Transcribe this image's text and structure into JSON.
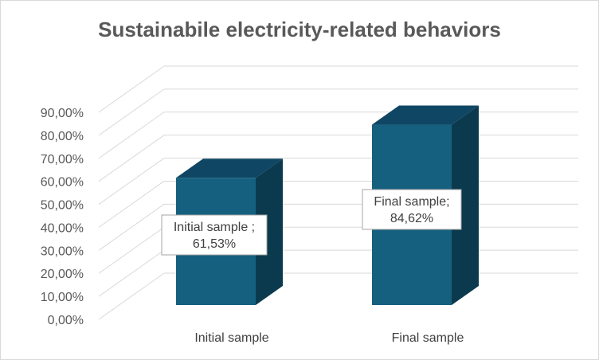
{
  "chart_data": {
    "type": "bar",
    "title": "Sustainabile electricity-related behaviors",
    "categories": [
      "Initial sample",
      "Final sample"
    ],
    "values": [
      61.53,
      84.62
    ],
    "data_labels": [
      [
        "Initial sample ;",
        "61,53%"
      ],
      [
        "Final sample;",
        "84,62%"
      ]
    ],
    "y_ticks": [
      "0,00%",
      "10,00%",
      "20,00%",
      "30,00%",
      "40,00%",
      "50,00%",
      "60,00%",
      "70,00%",
      "80,00%",
      "90,00%"
    ],
    "ylim": [
      0,
      90
    ],
    "grid": true,
    "legend": "none",
    "three_d": true,
    "colors": {
      "bar_front": "#15607f",
      "bar_top": "#0f4663",
      "bar_side": "#0b3a4f",
      "grid": "#d9d9d9",
      "title": "#595959"
    }
  }
}
